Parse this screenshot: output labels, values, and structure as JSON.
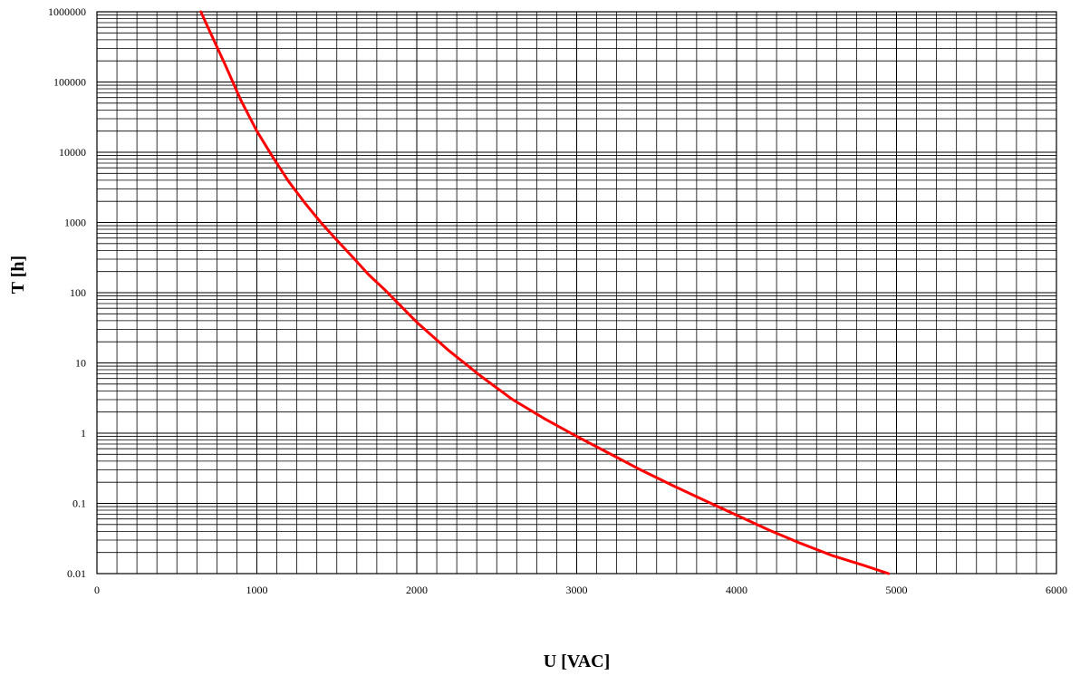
{
  "chart_data": {
    "type": "line",
    "title": "",
    "xlabel": "U [VAC]",
    "ylabel": "T [h]",
    "xscale": "linear",
    "yscale": "log",
    "xlim": [
      0,
      6000
    ],
    "ylim": [
      0.01,
      1000000
    ],
    "grid": true,
    "x_ticks": [
      0,
      1000,
      2000,
      3000,
      4000,
      5000,
      6000
    ],
    "x_tick_labels": [
      "0",
      "1000",
      "2000",
      "3000",
      "4000",
      "5000",
      "6000"
    ],
    "x_minor_step": 125,
    "y_ticks": [
      0.01,
      0.1,
      1,
      10,
      100,
      1000,
      10000,
      100000,
      1000000
    ],
    "y_tick_labels": [
      "0.01",
      "0.1",
      "1",
      "10",
      "100",
      "1000",
      "10000",
      "100000",
      "1000000"
    ],
    "series": [
      {
        "color": "#ff0000",
        "x": [
          650,
          700,
          800,
          900,
          1000,
          1100,
          1200,
          1300,
          1400,
          1500,
          1600,
          1700,
          1800,
          2000,
          2200,
          2400,
          2600,
          2800,
          3000,
          3200,
          3400,
          3600,
          3800,
          4000,
          4200,
          4400,
          4600,
          4800,
          4950
        ],
        "y": [
          1000000,
          560000,
          180000,
          55000,
          20000,
          8500,
          3800,
          1900,
          1000,
          560,
          320,
          180,
          110,
          38,
          15,
          6.5,
          3.0,
          1.6,
          0.9,
          0.52,
          0.3,
          0.18,
          0.11,
          0.068,
          0.042,
          0.027,
          0.018,
          0.013,
          0.01
        ]
      }
    ]
  }
}
